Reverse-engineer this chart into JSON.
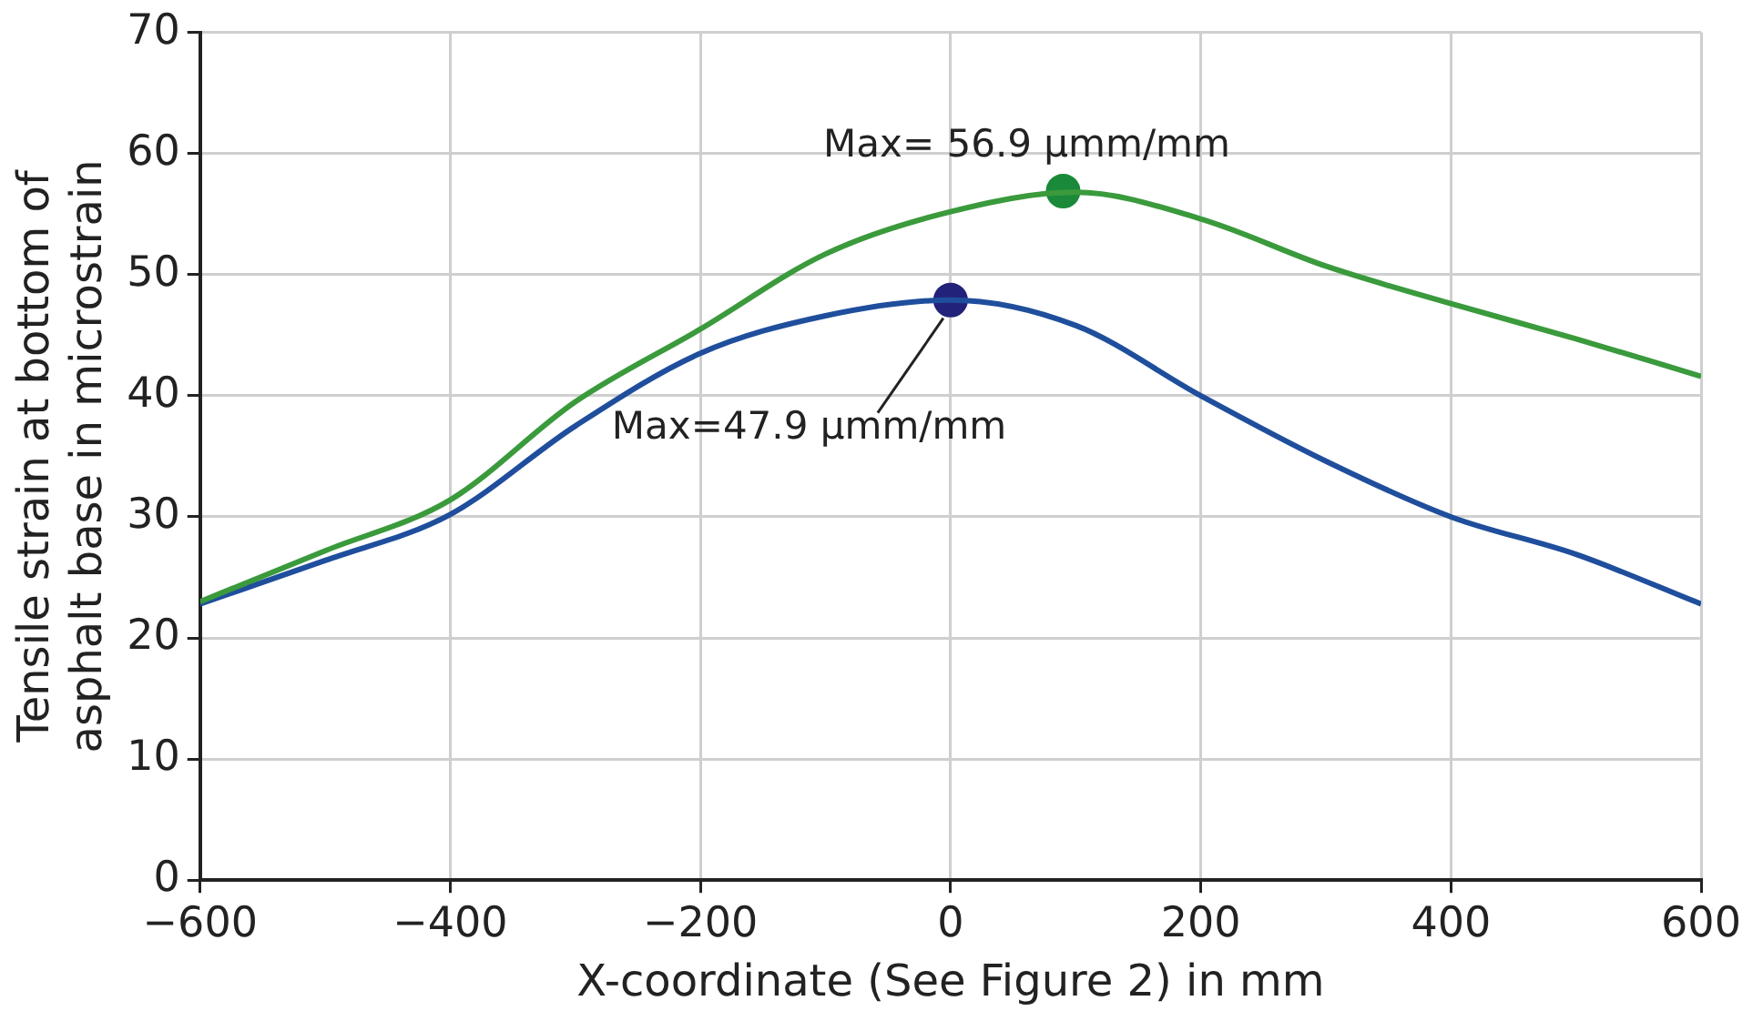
{
  "chart_data": {
    "type": "line",
    "xlabel": "X-coordinate (See Figure 2) in mm",
    "ylabel": "Tensile strain at bottom of asphalt base in microstrain",
    "xlim": [
      -600,
      600
    ],
    "xticks": [
      {
        "value": -600,
        "label": "−600"
      },
      {
        "value": -400,
        "label": "−400"
      },
      {
        "value": -200,
        "label": "−200"
      },
      0,
      200,
      400,
      600
    ],
    "ylim": [
      0,
      70
    ],
    "yticks": [
      0,
      10,
      20,
      30,
      40,
      50,
      60,
      70
    ],
    "grid": true,
    "legend": false,
    "marker": "none",
    "line_style": "solid",
    "series": [
      {
        "color": "#3a9a3c",
        "x": [
          -600,
          -500,
          -400,
          -300,
          -200,
          -100,
          0,
          100,
          200,
          300,
          400,
          500,
          600
        ],
        "values": [
          23,
          27.2,
          31.4,
          39.5,
          45.5,
          51.7,
          55.2,
          56.8,
          54.6,
          50.7,
          47.6,
          44.7,
          41.6
        ]
      },
      {
        "color": "#1f4e9c",
        "x": [
          -600,
          -500,
          -400,
          -300,
          -200,
          -100,
          0,
          100,
          200,
          300,
          400,
          500,
          600
        ],
        "values": [
          22.8,
          26.4,
          30.2,
          37.5,
          43.5,
          46.6,
          47.9,
          45.8,
          40,
          34.6,
          30,
          26.9,
          22.8
        ]
      },
      {
        "type": "scatter",
        "marker": "circle",
        "color": "#1a8a3a",
        "x": [
          90
        ],
        "values": [
          56.9
        ]
      },
      {
        "type": "scatter",
        "marker": "circle",
        "color": "#22227a",
        "x": [
          0
        ],
        "values": [
          47.9
        ]
      }
    ],
    "annotations": [
      {
        "text": "Max= 56.9 μmm/mm",
        "x": 90,
        "y": 56.9
      },
      {
        "text": "Max=47.9 μmm/mm",
        "x": 0,
        "y": 47.9
      }
    ]
  }
}
